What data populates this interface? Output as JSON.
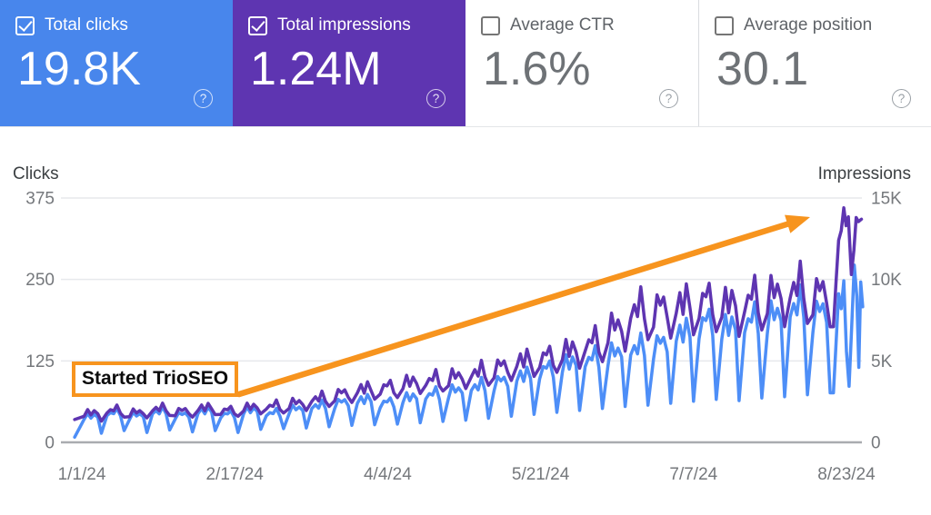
{
  "icons": {
    "help": "?",
    "check": "checkmark"
  },
  "colors": {
    "card_clicks_bg": "#4886ec",
    "card_impressions_bg": "#5e35b1",
    "line_clicks": "#4d8ef7",
    "line_impressions": "#5e35b1",
    "annotation_orange": "#f7941e",
    "gridline": "#e7e9ec",
    "baseline": "#a9acb0",
    "tick_text": "#75787c",
    "axis_title_text": "#3c4043"
  },
  "cards": [
    {
      "label": "Total clicks",
      "value": "19.8K",
      "checked": true,
      "bg": "#4886ec"
    },
    {
      "label": "Total impressions",
      "value": "1.24M",
      "checked": true,
      "bg": "#5e35b1"
    },
    {
      "label": "Average CTR",
      "value": "1.6%",
      "checked": false,
      "bg": "#ffffff"
    },
    {
      "label": "Average position",
      "value": "30.1",
      "checked": false,
      "bg": "#ffffff"
    }
  ],
  "chart_data": {
    "type": "line",
    "title": "",
    "grid": true,
    "legend": "none",
    "left_axis": {
      "label": "Clicks",
      "max": 375,
      "ticks": [
        {
          "label": "375",
          "value": 375
        },
        {
          "label": "250",
          "value": 250
        },
        {
          "label": "125",
          "value": 125
        },
        {
          "label": "0",
          "value": 0
        }
      ]
    },
    "right_axis": {
      "label": "Impressions",
      "max": 15000,
      "ticks": [
        {
          "label": "15K",
          "value": 15000
        },
        {
          "label": "10K",
          "value": 10000
        },
        {
          "label": "5K",
          "value": 5000
        },
        {
          "label": "0",
          "value": 0
        }
      ]
    },
    "x_ticks": [
      {
        "label": "1/1/24",
        "day": 0
      },
      {
        "label": "2/17/24",
        "day": 47
      },
      {
        "label": "4/4/24",
        "day": 94
      },
      {
        "label": "5/21/24",
        "day": 141
      },
      {
        "label": "7/7/24",
        "day": 188
      },
      {
        "label": "8/23/24",
        "day": 235
      }
    ],
    "x_range_days": [
      0,
      240
    ],
    "series": [
      {
        "name": "Clicks",
        "axis": "left",
        "color": "#4d8ef7",
        "start": [
          -2.2,
          8
        ],
        "weekly_peak_trough": [
          [
            44,
            14
          ],
          [
            50,
            18
          ],
          [
            46,
            15
          ],
          [
            52,
            19
          ],
          [
            47,
            16
          ],
          [
            53,
            18
          ],
          [
            48,
            15
          ],
          [
            54,
            20
          ],
          [
            50,
            21
          ],
          [
            57,
            22
          ],
          [
            62,
            24
          ],
          [
            68,
            26
          ],
          [
            72,
            27
          ],
          [
            68,
            28
          ],
          [
            76,
            30
          ],
          [
            82,
            32
          ],
          [
            88,
            34
          ],
          [
            95,
            37
          ],
          [
            104,
            40
          ],
          [
            113,
            43
          ],
          [
            125,
            46
          ],
          [
            134,
            49
          ],
          [
            143,
            52
          ],
          [
            152,
            55
          ],
          [
            160,
            57
          ],
          [
            168,
            60
          ],
          [
            186,
            63
          ],
          [
            205,
            66
          ],
          [
            196,
            64
          ],
          [
            208,
            68
          ],
          [
            216,
            70
          ],
          [
            230,
            73
          ],
          [
            222,
            76
          ]
        ],
        "tail_points": [
          [
            231,
            76
          ],
          [
            231.8,
            150
          ],
          [
            232.6,
            228
          ],
          [
            233.4,
            205
          ],
          [
            234.2,
            248
          ],
          [
            235,
            140
          ],
          [
            235.8,
            86
          ],
          [
            236.6,
            175
          ],
          [
            237.4,
            272
          ],
          [
            238.2,
            224
          ],
          [
            238.8,
            115
          ],
          [
            239.4,
            246
          ],
          [
            240,
            208
          ]
        ]
      },
      {
        "name": "Impressions",
        "axis": "right",
        "color": "#5e35b1",
        "start": [
          -2.2,
          1400
        ],
        "weekly_peak_trough": [
          [
            2000,
            1300
          ],
          [
            2200,
            1550
          ],
          [
            2050,
            1500
          ],
          [
            2300,
            1650
          ],
          [
            2150,
            1550
          ],
          [
            2350,
            1700
          ],
          [
            2200,
            1600
          ],
          [
            2400,
            1750
          ],
          [
            2500,
            1800
          ],
          [
            2700,
            1950
          ],
          [
            3000,
            2200
          ],
          [
            3350,
            2450
          ],
          [
            3650,
            2650
          ],
          [
            3800,
            2750
          ],
          [
            4100,
            3000
          ],
          [
            4300,
            3150
          ],
          [
            4500,
            3300
          ],
          [
            4800,
            3500
          ],
          [
            5200,
            3800
          ],
          [
            5600,
            4050
          ],
          [
            5900,
            4300
          ],
          [
            6300,
            4550
          ],
          [
            6900,
            4950
          ],
          [
            7900,
            5600
          ],
          [
            9100,
            6300
          ],
          [
            9300,
            6400
          ],
          [
            9500,
            6600
          ],
          [
            9800,
            6800
          ],
          [
            9500,
            6500
          ],
          [
            9900,
            6900
          ],
          [
            10200,
            7100
          ],
          [
            10600,
            7300
          ],
          [
            10300,
            7100
          ]
        ],
        "tail_points": [
          [
            231,
            7100
          ],
          [
            231.8,
            9800
          ],
          [
            232.6,
            12400
          ],
          [
            233.4,
            13000
          ],
          [
            234.2,
            14400
          ],
          [
            234.9,
            13300
          ],
          [
            235.6,
            13850
          ],
          [
            236.5,
            10300
          ],
          [
            237.3,
            11800
          ],
          [
            238,
            13800
          ],
          [
            238.7,
            13550
          ],
          [
            239.6,
            13700
          ]
        ]
      }
    ],
    "annotation": {
      "text": "Started TrioSEO",
      "color": "#f7941e",
      "arrow_from": [
        263,
        434
      ],
      "arrow_to": [
        891,
        239
      ]
    }
  }
}
